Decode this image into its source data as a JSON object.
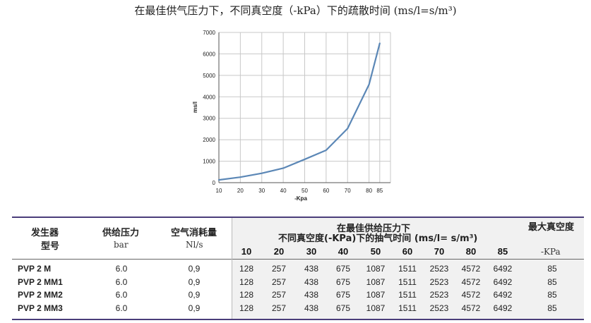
{
  "title": "在最佳供气压力下，不同真空度（-kPa）下的疏散时间 (ms/l=s/m³)",
  "chart_data": {
    "type": "line",
    "title": "",
    "xlabel": "-Kpa",
    "ylabel": "ms/l",
    "x": [
      10,
      20,
      30,
      40,
      50,
      60,
      70,
      80,
      85
    ],
    "y_ticks": [
      0,
      1000,
      2000,
      3000,
      4000,
      5000,
      6000,
      7000
    ],
    "ylim": [
      0,
      7000
    ],
    "series": [
      {
        "values": [
          128,
          257,
          438,
          675,
          1087,
          1511,
          2523,
          4572,
          6492
        ],
        "color": "#5b87b6"
      }
    ],
    "grid": true
  },
  "table": {
    "header": {
      "col1_line1": "发生器",
      "col1_line2": "型号",
      "col2_line1": "供给压力",
      "col2_line2": "bar",
      "col3_line1": "空气消耗量",
      "col3_line2": "Nl/s",
      "group_line1": "在最佳供给压力下",
      "group_line2": "不同真空度(-KPa)下的抽气时间 (ms/l= s/m³)",
      "last_line1": "最大真空度",
      "last_line2": "-KPa",
      "vacuum_levels": [
        "10",
        "20",
        "30",
        "40",
        "50",
        "60",
        "70",
        "80",
        "85"
      ]
    },
    "rows": [
      {
        "model": "PVP 2 M",
        "pressure": "6.0",
        "consumption": "0,9",
        "times": [
          "128",
          "257",
          "438",
          "675",
          "1087",
          "1511",
          "2523",
          "4572",
          "6492"
        ],
        "max_vacuum": "85"
      },
      {
        "model": "PVP 2 MM1",
        "pressure": "6.0",
        "consumption": "0,9",
        "times": [
          "128",
          "257",
          "438",
          "675",
          "1087",
          "1511",
          "2523",
          "4572",
          "6492"
        ],
        "max_vacuum": "85"
      },
      {
        "model": "PVP 2 MM2",
        "pressure": "6.0",
        "consumption": "0,9",
        "times": [
          "128",
          "257",
          "438",
          "675",
          "1087",
          "1511",
          "2523",
          "4572",
          "6492"
        ],
        "max_vacuum": "85"
      },
      {
        "model": "PVP 2 MM3",
        "pressure": "6.0",
        "consumption": "0,9",
        "times": [
          "128",
          "257",
          "438",
          "675",
          "1087",
          "1511",
          "2523",
          "4572",
          "6492"
        ],
        "max_vacuum": "85"
      }
    ]
  }
}
